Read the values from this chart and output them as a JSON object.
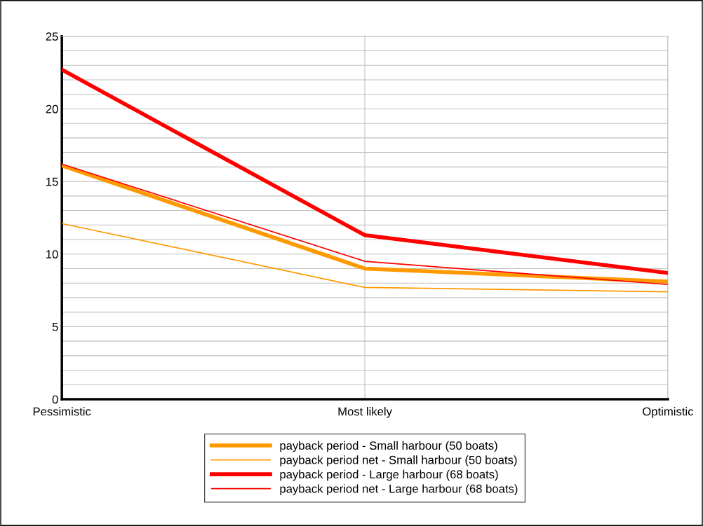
{
  "chart_data": {
    "type": "line",
    "categories": [
      "Pessimistic",
      "Most likely",
      "Optimistic"
    ],
    "series": [
      {
        "name": "payback period - Small harbour (50 boats)",
        "color": "#ff9900",
        "values": [
          16.1,
          9.0,
          8.1
        ]
      },
      {
        "name": "payback period net - Small harbour (50 boats)",
        "color": "#ff9900",
        "values": [
          12.1,
          7.7,
          7.4
        ]
      },
      {
        "name": "payback period - Large harbour (68 boats)",
        "color": "#ff0000",
        "values": [
          22.7,
          11.3,
          8.7
        ]
      },
      {
        "name": "payback period net - Large harbour (68 boats)",
        "color": "#ff0000",
        "values": [
          16.2,
          9.5,
          7.9
        ]
      }
    ],
    "ylim": [
      0,
      25
    ],
    "yticks": [
      0,
      {
        "value": 1,
        "label": null
      },
      {
        "value": 2,
        "label": null
      },
      {
        "value": 3,
        "label": null
      },
      {
        "value": 4,
        "label": null
      },
      5,
      {
        "value": 6,
        "label": null
      },
      {
        "value": 7,
        "label": null
      },
      {
        "value": 8,
        "label": null
      },
      {
        "value": 9,
        "label": null
      },
      10,
      {
        "value": 11,
        "label": null
      },
      {
        "value": 12,
        "label": null
      },
      {
        "value": 13,
        "label": null
      },
      {
        "value": 14,
        "label": null
      },
      15,
      {
        "value": 16,
        "label": null
      },
      {
        "value": 17,
        "label": null
      },
      {
        "value": 18,
        "label": null
      },
      {
        "value": 19,
        "label": null
      },
      20,
      {
        "value": 21,
        "label": null
      },
      {
        "value": 22,
        "label": null
      },
      {
        "value": 23,
        "label": null
      },
      {
        "value": 24,
        "label": null
      },
      25
    ],
    "grid": true,
    "legend": "bottom",
    "marker": "none",
    "line_style": "solid"
  }
}
